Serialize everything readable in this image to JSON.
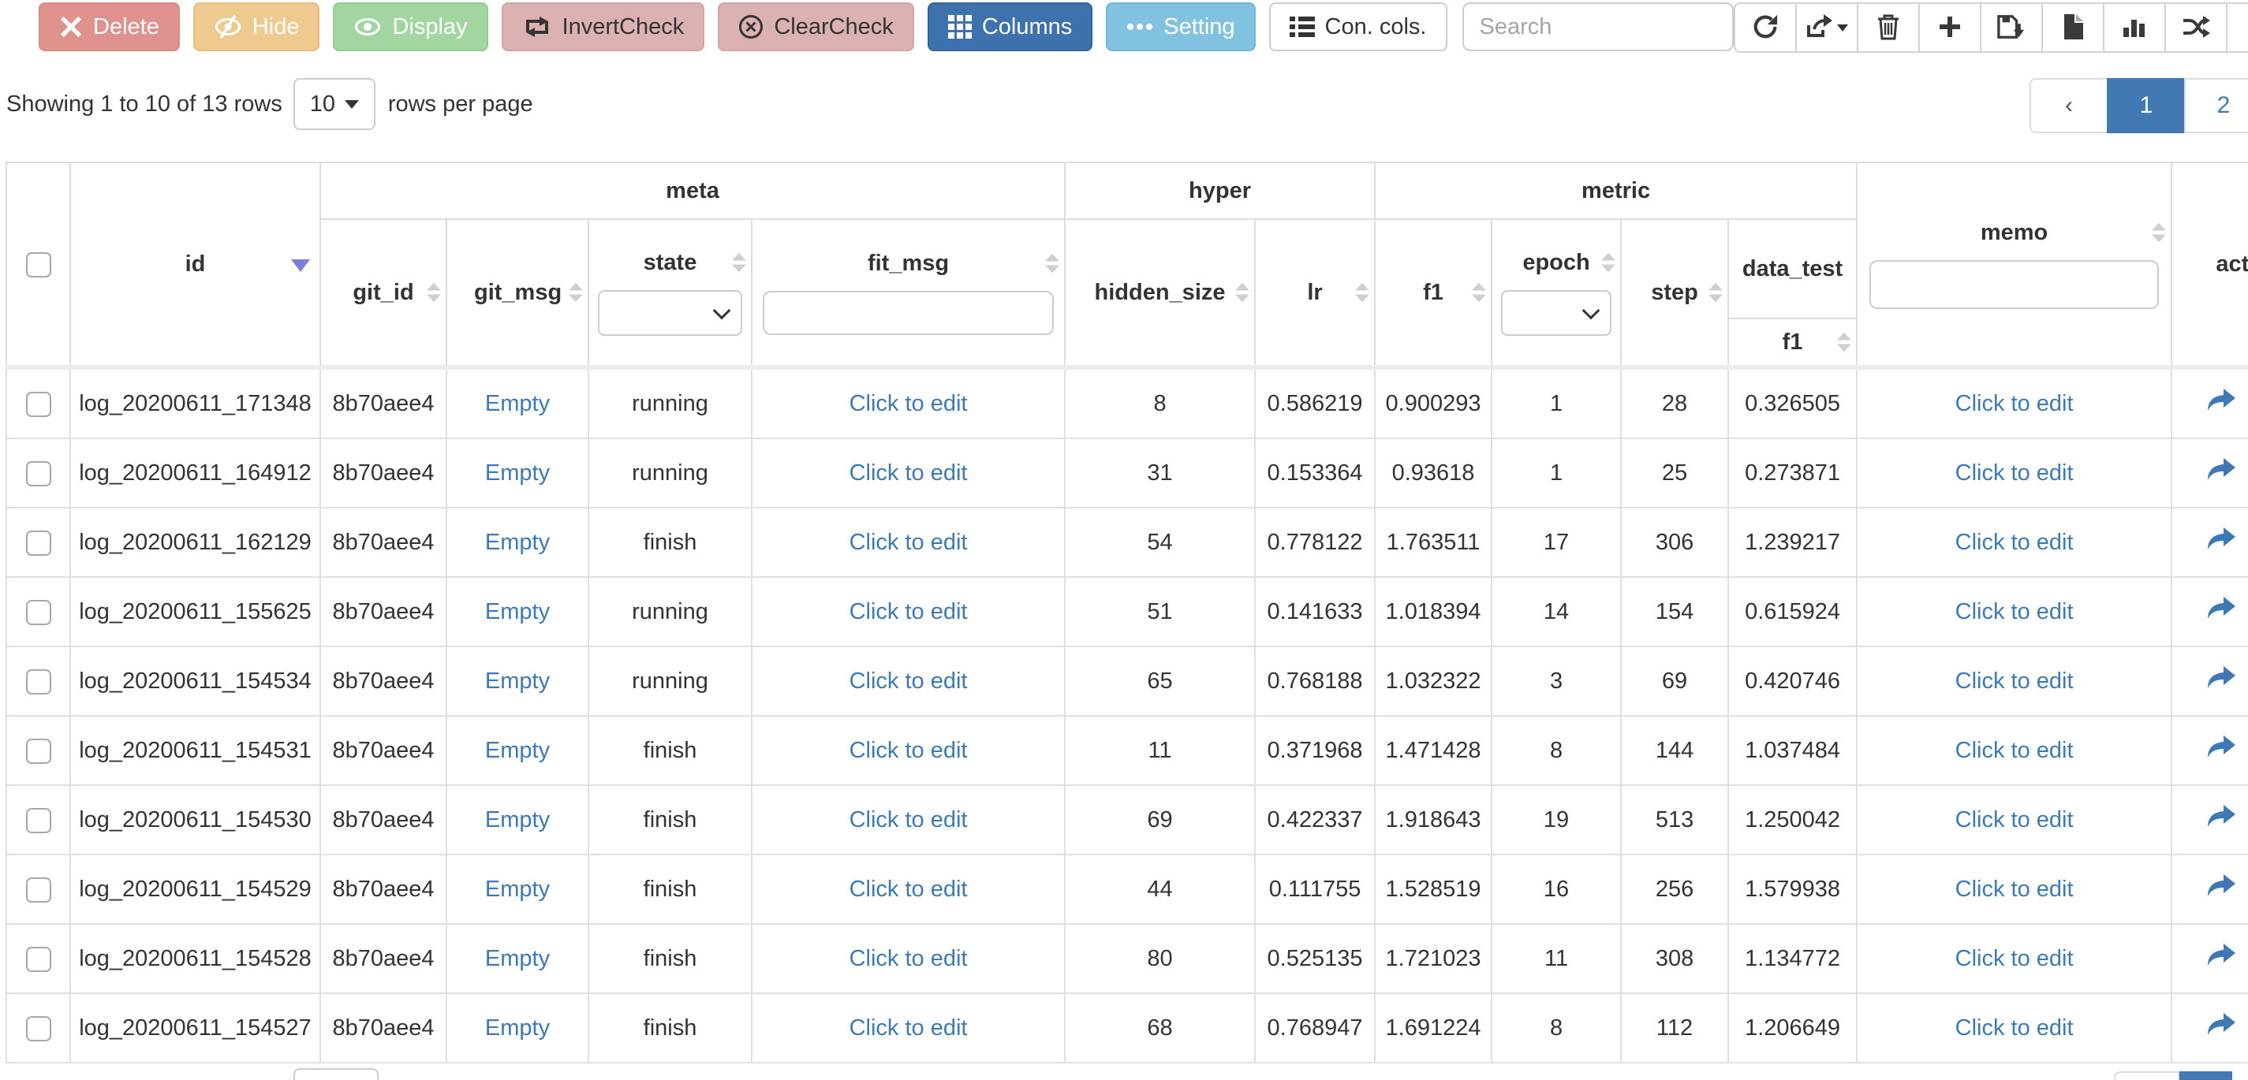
{
  "toolbar": {
    "buttons": [
      {
        "name": "delete-button",
        "label": "Delete",
        "icon": "x-icon",
        "variant": "danger"
      },
      {
        "name": "hide-button",
        "label": "Hide",
        "icon": "eye-slash-icon",
        "variant": "warning"
      },
      {
        "name": "display-button",
        "label": "Display",
        "icon": "eye-icon",
        "variant": "success"
      },
      {
        "name": "invert-check-button",
        "label": "InvertCheck",
        "icon": "invert-check-icon",
        "variant": "pink"
      },
      {
        "name": "clear-check-button",
        "label": "ClearCheck",
        "icon": "clear-check-icon",
        "variant": "pink"
      },
      {
        "name": "columns-button",
        "label": "Columns",
        "icon": "columns-grid-icon",
        "variant": "primary"
      },
      {
        "name": "setting-button",
        "label": "Setting",
        "icon": "ellipsis-icon",
        "variant": "info"
      },
      {
        "name": "concat-columns-button",
        "label": "Con. cols.",
        "icon": "list-icon",
        "variant": "default"
      }
    ],
    "search": {
      "placeholder": "Search"
    },
    "icon_buttons": [
      {
        "name": "refresh-button",
        "icon": "refresh-icon",
        "has_caret": false
      },
      {
        "name": "export-button",
        "icon": "export-icon",
        "has_caret": true
      },
      {
        "name": "trash-button",
        "icon": "trash-icon",
        "has_caret": false
      },
      {
        "name": "add-button",
        "icon": "plus-icon",
        "has_caret": false
      },
      {
        "name": "save-button",
        "icon": "save-icon",
        "has_caret": false
      },
      {
        "name": "file-button",
        "icon": "file-icon",
        "has_caret": false
      },
      {
        "name": "chart-button",
        "icon": "bar-chart-icon",
        "has_caret": false
      },
      {
        "name": "shuffle-button",
        "icon": "shuffle-icon",
        "has_caret": false
      },
      {
        "name": "money-button",
        "icon": "dollar-icon",
        "has_caret": false
      }
    ]
  },
  "pagination": {
    "summary": "Showing 1 to 10 of 13 rows",
    "page_size": "10",
    "page_size_suffix": "rows per page",
    "prev_label": "‹",
    "pages": [
      "1",
      "2"
    ],
    "active_page": "1"
  },
  "table": {
    "groups": {
      "meta": "meta",
      "hyper": "hyper",
      "metric": "metric"
    },
    "columns": {
      "id": "id",
      "git_id": "git_id",
      "git_msg": "git_msg",
      "state": "state",
      "fit_msg": "fit_msg",
      "hidden_size": "hidden_size",
      "lr": "lr",
      "f1": "f1",
      "epoch": "epoch",
      "step": "step",
      "data_test": "data_test",
      "data_test_f1": "f1",
      "memo": "memo",
      "action": "action"
    },
    "rows": [
      {
        "id": "log_20200611_171348",
        "git_id": "8b70aee4",
        "git_msg": "Empty",
        "state": "running",
        "fit_msg": "Click to edit",
        "hidden_size": "8",
        "lr": "0.586219",
        "f1": "0.900293",
        "epoch": "1",
        "step": "28",
        "data_test_f1": "0.326505",
        "memo": "Click to edit"
      },
      {
        "id": "log_20200611_164912",
        "git_id": "8b70aee4",
        "git_msg": "Empty",
        "state": "running",
        "fit_msg": "Click to edit",
        "hidden_size": "31",
        "lr": "0.153364",
        "f1": "0.93618",
        "epoch": "1",
        "step": "25",
        "data_test_f1": "0.273871",
        "memo": "Click to edit"
      },
      {
        "id": "log_20200611_162129",
        "git_id": "8b70aee4",
        "git_msg": "Empty",
        "state": "finish",
        "fit_msg": "Click to edit",
        "hidden_size": "54",
        "lr": "0.778122",
        "f1": "1.763511",
        "epoch": "17",
        "step": "306",
        "data_test_f1": "1.239217",
        "memo": "Click to edit"
      },
      {
        "id": "log_20200611_155625",
        "git_id": "8b70aee4",
        "git_msg": "Empty",
        "state": "running",
        "fit_msg": "Click to edit",
        "hidden_size": "51",
        "lr": "0.141633",
        "f1": "1.018394",
        "epoch": "14",
        "step": "154",
        "data_test_f1": "0.615924",
        "memo": "Click to edit"
      },
      {
        "id": "log_20200611_154534",
        "git_id": "8b70aee4",
        "git_msg": "Empty",
        "state": "running",
        "fit_msg": "Click to edit",
        "hidden_size": "65",
        "lr": "0.768188",
        "f1": "1.032322",
        "epoch": "3",
        "step": "69",
        "data_test_f1": "0.420746",
        "memo": "Click to edit"
      },
      {
        "id": "log_20200611_154531",
        "git_id": "8b70aee4",
        "git_msg": "Empty",
        "state": "finish",
        "fit_msg": "Click to edit",
        "hidden_size": "11",
        "lr": "0.371968",
        "f1": "1.471428",
        "epoch": "8",
        "step": "144",
        "data_test_f1": "1.037484",
        "memo": "Click to edit"
      },
      {
        "id": "log_20200611_154530",
        "git_id": "8b70aee4",
        "git_msg": "Empty",
        "state": "finish",
        "fit_msg": "Click to edit",
        "hidden_size": "69",
        "lr": "0.422337",
        "f1": "1.918643",
        "epoch": "19",
        "step": "513",
        "data_test_f1": "1.250042",
        "memo": "Click to edit"
      },
      {
        "id": "log_20200611_154529",
        "git_id": "8b70aee4",
        "git_msg": "Empty",
        "state": "finish",
        "fit_msg": "Click to edit",
        "hidden_size": "44",
        "lr": "0.111755",
        "f1": "1.528519",
        "epoch": "16",
        "step": "256",
        "data_test_f1": "1.579938",
        "memo": "Click to edit"
      },
      {
        "id": "log_20200611_154528",
        "git_id": "8b70aee4",
        "git_msg": "Empty",
        "state": "finish",
        "fit_msg": "Click to edit",
        "hidden_size": "80",
        "lr": "0.525135",
        "f1": "1.721023",
        "epoch": "11",
        "step": "308",
        "data_test_f1": "1.134772",
        "memo": "Click to edit"
      },
      {
        "id": "log_20200611_154527",
        "git_id": "8b70aee4",
        "git_msg": "Empty",
        "state": "finish",
        "fit_msg": "Click to edit",
        "hidden_size": "68",
        "lr": "0.768947",
        "f1": "1.691224",
        "epoch": "8",
        "step": "112",
        "data_test_f1": "1.206649",
        "memo": "Click to edit"
      }
    ]
  },
  "colors": {
    "link": "#3c79b5",
    "primary": "#3d72ae",
    "info": "#82c2e1",
    "danger": "#df918d",
    "warning": "#eeca8e",
    "success": "#a3d5a1",
    "pink": "#dbb1b1",
    "active_page_bg": "#4379b2",
    "sort_active": "#7b7dd8",
    "border": "#dddddd"
  }
}
